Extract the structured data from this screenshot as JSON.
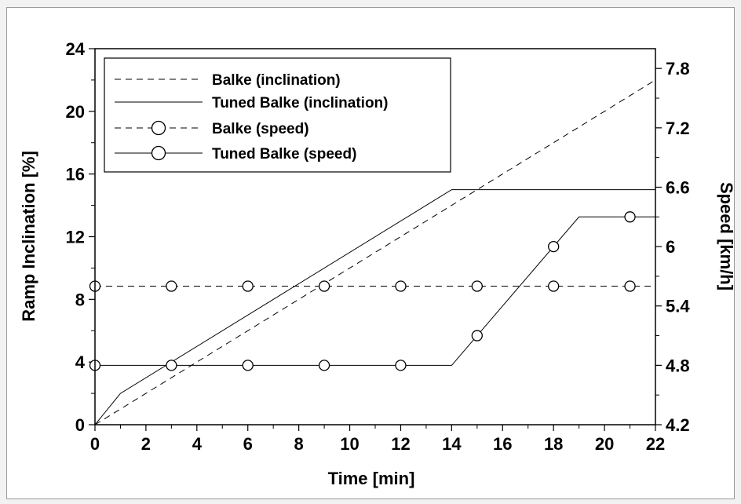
{
  "chart_data": {
    "type": "line",
    "xlabel": "Time [min]",
    "ylabel_left": "Ramp Inclination [%]",
    "ylabel_right": "Speed [km/h]",
    "xlim": [
      0,
      22
    ],
    "ylim_left": [
      0,
      24
    ],
    "ylim_right": [
      4.2,
      8.0
    ],
    "x_ticks": [
      0,
      2,
      4,
      6,
      8,
      10,
      12,
      14,
      16,
      18,
      20,
      22
    ],
    "y_left_ticks": [
      0,
      4,
      8,
      12,
      16,
      20,
      24
    ],
    "y_right_ticks": [
      4.2,
      4.8,
      5.4,
      6,
      6.6,
      7.2,
      7.8
    ],
    "y_right_tick_labels": [
      "4.2",
      "4.8",
      "5.4",
      "6",
      "6.6",
      "7.2",
      "7.8"
    ],
    "grid": false,
    "legend_position": "top-left",
    "series": [
      {
        "name": "Balke (inclination)",
        "axis": "left",
        "style": "dashed",
        "marker": "none",
        "x": [
          0,
          22
        ],
        "y": [
          0,
          22
        ]
      },
      {
        "name": "Tuned Balke (inclination)",
        "axis": "left",
        "style": "solid",
        "marker": "none",
        "x": [
          0,
          1,
          14,
          22
        ],
        "y": [
          0,
          2,
          15,
          15
        ]
      },
      {
        "name": "Balke (speed)",
        "axis": "right",
        "style": "dashed",
        "marker": "circle",
        "x": [
          0,
          22
        ],
        "y": [
          5.6,
          5.6
        ],
        "marker_x": [
          0,
          3,
          6,
          9,
          12,
          15,
          18,
          21
        ],
        "marker_y": [
          5.6,
          5.6,
          5.6,
          5.6,
          5.6,
          5.6,
          5.6,
          5.6
        ]
      },
      {
        "name": "Tuned Balke (speed)",
        "axis": "right",
        "style": "solid",
        "marker": "circle",
        "x": [
          0,
          14,
          19,
          22
        ],
        "y": [
          4.8,
          4.8,
          6.3,
          6.3
        ],
        "marker_x": [
          0,
          3,
          6,
          9,
          12,
          15,
          18,
          21
        ],
        "marker_y": [
          4.8,
          4.8,
          4.8,
          4.8,
          4.8,
          5.1,
          6.0,
          6.3
        ]
      }
    ]
  }
}
